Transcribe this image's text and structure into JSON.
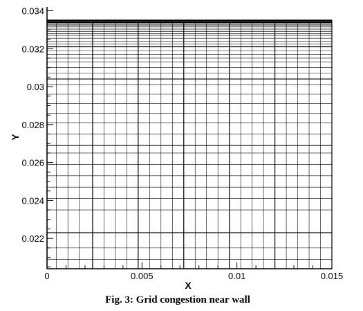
{
  "chart_data": {
    "type": "grid",
    "title": "",
    "xlabel": "X",
    "ylabel": "Y",
    "xlim": [
      0,
      0.015
    ],
    "ylim": [
      0.0204,
      0.0342
    ],
    "x_ticks": [
      {
        "value": 0,
        "label": "0"
      },
      {
        "value": 0.005,
        "label": "0.005"
      },
      {
        "value": 0.01,
        "label": "0.01"
      },
      {
        "value": 0.015,
        "label": "0.015"
      }
    ],
    "y_ticks": [
      {
        "value": 0.022,
        "label": "0.022"
      },
      {
        "value": 0.024,
        "label": "0.024"
      },
      {
        "value": 0.026,
        "label": "0.026"
      },
      {
        "value": 0.028,
        "label": "0.028"
      },
      {
        "value": 0.03,
        "label": "0.03"
      },
      {
        "value": 0.032,
        "label": "0.032"
      },
      {
        "value": 0.034,
        "label": "0.034"
      }
    ],
    "x_minor_step": 0.001,
    "y_minor_step": 0.0005,
    "grid_x_lines": [
      0.0005,
      0.0011,
      0.0017,
      0.0024,
      0.003,
      0.0036,
      0.0042,
      0.0048,
      0.0054,
      0.006,
      0.0066,
      0.0072,
      0.0078,
      0.0084,
      0.009,
      0.0096,
      0.0102,
      0.0108,
      0.0114,
      0.012,
      0.0126,
      0.0132,
      0.0138,
      0.0144
    ],
    "grid_x_bold": [
      0.0024,
      0.0048,
      0.0072,
      0.0096,
      0.012
    ],
    "grid_y_lines": [
      0.0209,
      0.0215,
      0.0223,
      0.0235,
      0.0241,
      0.0247,
      0.0253,
      0.0259,
      0.0265,
      0.0269,
      0.0275,
      0.0281,
      0.0286,
      0.0291,
      0.0296,
      0.0301,
      0.0304,
      0.0307,
      0.031,
      0.0313,
      0.0315,
      0.0317,
      0.0319,
      0.0321,
      0.03225,
      0.0324,
      0.03255,
      0.0327,
      0.0328,
      0.0329,
      0.033,
      0.03308,
      0.03315,
      0.03322,
      0.03328,
      0.03333,
      0.03337,
      0.0334,
      0.03343,
      0.03346
    ],
    "grid_y_bold": [
      0.0223,
      0.0269,
      0.0304,
      0.0321,
      0.0334
    ],
    "grid_top": 0.0335,
    "grid": true,
    "legend": "none"
  },
  "caption": "Fig. 3: Grid congestion near wall"
}
